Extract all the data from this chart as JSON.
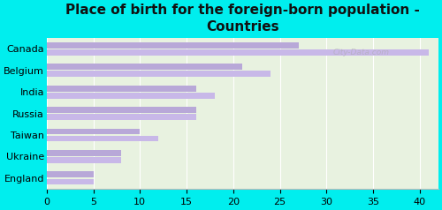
{
  "title": "Place of birth for the foreign-born population -\nCountries",
  "categories": [
    "Canada",
    "Belgium",
    "India",
    "Russia",
    "Taiwan",
    "Ukraine",
    "England"
  ],
  "values_top": [
    41,
    24,
    18,
    16,
    12,
    8,
    5
  ],
  "values_bot": [
    27,
    21,
    16,
    16,
    10,
    8,
    5
  ],
  "bar_color_top": "#c8b8e8",
  "bar_color_bot": "#b8a8d8",
  "background_outer": "#00eeee",
  "background_inner": "#e8f2e0",
  "xlim": [
    0,
    42
  ],
  "xticks": [
    0,
    5,
    10,
    15,
    20,
    25,
    30,
    35,
    40
  ],
  "bar_height": 0.28,
  "bar_gap": 0.05,
  "title_fontsize": 11,
  "tick_fontsize": 8,
  "watermark": "City-Data.com"
}
